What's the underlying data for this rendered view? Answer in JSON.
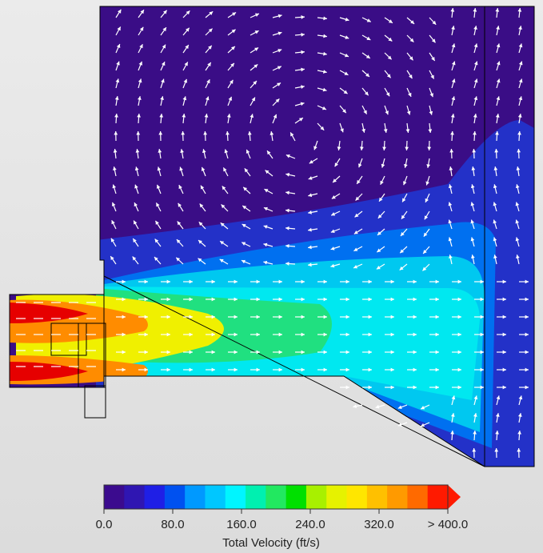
{
  "legend": {
    "title": "Total Velocity (ft/s)",
    "ticks": [
      "0.0",
      "80.0",
      "160.0",
      "240.0",
      "320.0",
      "> 400.0"
    ],
    "colors": [
      "#3b0b8e",
      "#2f16b2",
      "#1f1fe6",
      "#0051f0",
      "#0099ff",
      "#00c7ff",
      "#00f5ff",
      "#00f0b0",
      "#22e860",
      "#00e000",
      "#a8f000",
      "#e6f200",
      "#ffe600",
      "#ffc000",
      "#ff9a00",
      "#ff6a00",
      "#ff1a00"
    ]
  },
  "field": {
    "colors": {
      "background": "#3a0d86",
      "low": "#2331c8",
      "mid_low": "#0070f0",
      "mid": "#00c8f0",
      "cyan": "#00e8f0",
      "green": "#20e080",
      "yellow": "#f0f000",
      "orange": "#ff8c00",
      "red": "#e60000",
      "arrow": "#ffffff"
    }
  }
}
